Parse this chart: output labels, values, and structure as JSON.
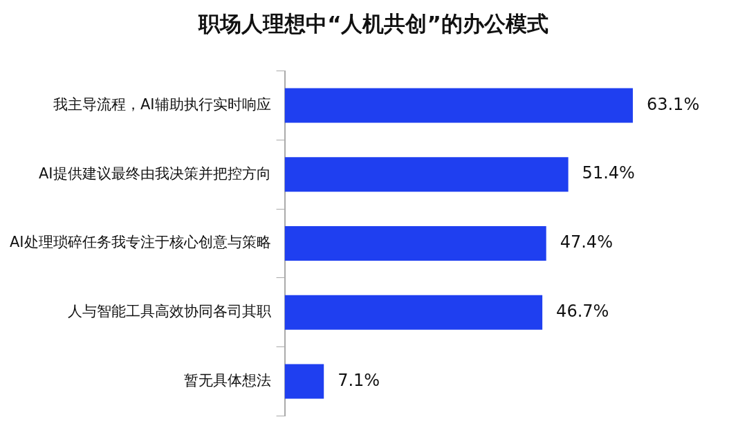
{
  "chart_data": {
    "type": "bar",
    "orientation": "horizontal",
    "title": "职场人理想中“人机共创”的办公模式",
    "categories": [
      "我主导流程，AI辅助执行实时响应",
      "AI提供建议最终由我决策并把控方向",
      "AI处理琐碎任务我专注于核心创意与策略",
      "人与智能工具高效协同各司其职",
      "暂无具体想法"
    ],
    "values": [
      63.1,
      51.4,
      47.4,
      46.7,
      7.1
    ],
    "value_labels": [
      "63.1%",
      "51.4%",
      "47.4%",
      "46.7%",
      "7.1%"
    ],
    "color": "#1f3ff0",
    "legend": false
  }
}
